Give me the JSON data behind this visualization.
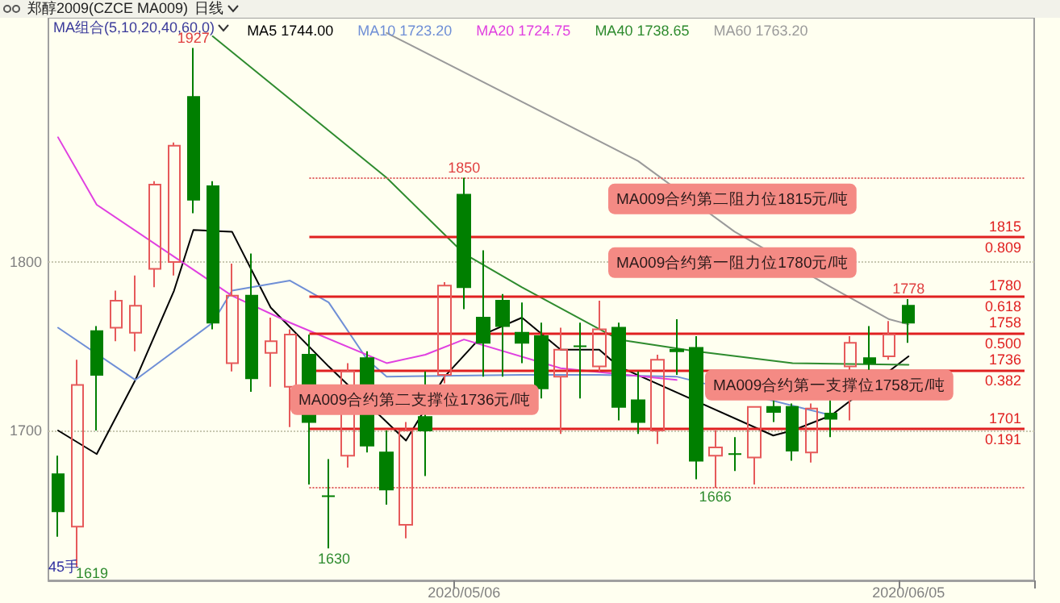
{
  "chart_data": {
    "type": "candlestick",
    "title": "郑醇2009(CZCE MA009)",
    "subtitle": "日线",
    "legend_title": "MA组合(5,10,20,40,60,0)",
    "legend": "top",
    "grid": "y",
    "categories": [
      null,
      null,
      null,
      null,
      null,
      null,
      null,
      null,
      null,
      null,
      null,
      null,
      null,
      null,
      null,
      null,
      null,
      null,
      null,
      null,
      null,
      "2020/05/06",
      null,
      null,
      null,
      null,
      null,
      null,
      null,
      null,
      null,
      null,
      null,
      null,
      null,
      null,
      null,
      null,
      null,
      null,
      null,
      null,
      null,
      null,
      "2020/06/05"
    ],
    "ohlc": [
      [
        1674,
        1685,
        1637,
        1652
      ],
      [
        1643,
        1742,
        1619,
        1727
      ],
      [
        1759,
        1762,
        1700,
        1733
      ],
      [
        1761,
        1783,
        1753,
        1777
      ],
      [
        1758,
        1792,
        1747,
        1774
      ],
      [
        1796,
        1848,
        1785,
        1846
      ],
      [
        1800,
        1871,
        1792,
        1869
      ],
      [
        1898,
        1927,
        1829,
        1837
      ],
      [
        1845,
        1848,
        1760,
        1764
      ],
      [
        1740,
        1799,
        1735,
        1780
      ],
      [
        1780,
        1805,
        1723,
        1731
      ],
      [
        1746,
        1767,
        1726,
        1753
      ],
      [
        1726,
        1760,
        1702,
        1757
      ],
      [
        1745,
        1757,
        1668,
        1705
      ],
      [
        1661,
        1683,
        1630,
        1661
      ],
      [
        1685,
        1740,
        1678,
        1735
      ],
      [
        1743,
        1747,
        1687,
        1691
      ],
      [
        1687,
        1700,
        1656,
        1665
      ],
      [
        1644,
        1705,
        1636,
        1700
      ],
      [
        1708,
        1735,
        1673,
        1700
      ],
      [
        1733,
        1788,
        1728,
        1786
      ],
      [
        1840,
        1850,
        1772,
        1785
      ],
      [
        1767,
        1807,
        1732,
        1752
      ],
      [
        1777,
        1781,
        1732,
        1762
      ],
      [
        1758,
        1776,
        1740,
        1752
      ],
      [
        1756,
        1764,
        1719,
        1725
      ],
      [
        1732,
        1761,
        1698,
        1748
      ],
      [
        1750,
        1764,
        1719,
        1750
      ],
      [
        1738,
        1777,
        1735,
        1760
      ],
      [
        1761,
        1764,
        1706,
        1714
      ],
      [
        1718,
        1735,
        1698,
        1705
      ],
      [
        1700,
        1745,
        1692,
        1742
      ],
      [
        1748,
        1766,
        1733,
        1747
      ],
      [
        1749,
        1756,
        1671,
        1682
      ],
      [
        1685,
        1700,
        1666,
        1690
      ],
      [
        1686,
        1696,
        1676,
        1686
      ],
      [
        1684,
        1714,
        1668,
        1714
      ],
      [
        1714,
        1718,
        1705,
        1711
      ],
      [
        1714,
        1716,
        1682,
        1688
      ],
      [
        1687,
        1716,
        1681,
        1713
      ],
      [
        1710,
        1718,
        1696,
        1707
      ],
      [
        1738,
        1756,
        1706,
        1752
      ],
      [
        1743,
        1762,
        1735,
        1740
      ],
      [
        1744,
        1765,
        1742,
        1757
      ],
      [
        1774,
        1778,
        1752,
        1764
      ]
    ],
    "series": [
      {
        "type": "line",
        "name": "MA5 1744.00",
        "color": "#000000",
        "values": [
          1700,
          null,
          1686,
          null,
          1730,
          null,
          1783,
          1819,
          null,
          1818,
          null,
          1773,
          null,
          null,
          1738,
          null,
          null,
          null,
          1694,
          null,
          1732,
          null,
          1757,
          null,
          1767,
          null,
          1748,
          null,
          1748,
          1738,
          null,
          null,
          null,
          null,
          null,
          null,
          null,
          1697,
          1700,
          null,
          1709,
          null,
          null,
          null,
          1744
        ]
      },
      {
        "type": "line",
        "name": "MA10 1723.20",
        "color": "#6f8fd6",
        "values": [
          1761,
          null,
          null,
          null,
          1730,
          null,
          null,
          null,
          1764,
          1783,
          null,
          null,
          1789,
          null,
          1776,
          null,
          1742,
          1732,
          null,
          null,
          null,
          null,
          null,
          null,
          1733,
          null,
          null,
          null,
          1733,
          null,
          null,
          null,
          1732,
          null,
          null,
          null,
          null,
          null,
          null,
          null,
          1709,
          null,
          null,
          null,
          null
        ]
      },
      {
        "type": "line",
        "name": "MA20 1724.75",
        "color": "#e040e0",
        "values": [
          1874,
          null,
          1834,
          null,
          null,
          null,
          null,
          null,
          null,
          1780,
          null,
          null,
          1764,
          null,
          null,
          null,
          null,
          1740,
          null,
          1745,
          null,
          1754,
          null,
          null,
          null,
          null,
          1737,
          null,
          null,
          null,
          null,
          null,
          1730,
          null,
          null,
          null,
          null,
          null,
          null,
          null,
          null,
          null,
          null,
          null,
          null
        ]
      },
      {
        "type": "line",
        "name": "MA40 1738.65",
        "color": "#2e8b2e",
        "values": [
          null,
          null,
          null,
          null,
          null,
          null,
          null,
          null,
          1934,
          null,
          null,
          null,
          null,
          null,
          null,
          null,
          null,
          1850,
          null,
          null,
          null,
          1805,
          null,
          null,
          1785,
          null,
          null,
          null,
          null,
          1754,
          null,
          null,
          null,
          1747,
          null,
          null,
          null,
          null,
          1740,
          null,
          null,
          null,
          null,
          null,
          1739
        ]
      },
      {
        "type": "line",
        "name": "MA60 1763.20",
        "color": "#9a9a9a",
        "values": [
          null,
          null,
          null,
          null,
          null,
          null,
          null,
          null,
          null,
          null,
          null,
          null,
          null,
          null,
          null,
          null,
          null,
          1936,
          null,
          null,
          null,
          null,
          null,
          null,
          null,
          null,
          null,
          null,
          null,
          null,
          1860,
          null,
          null,
          null,
          null,
          1818,
          null,
          null,
          null,
          null,
          1785,
          null,
          null,
          1766,
          1763
        ]
      }
    ],
    "ylim": [
      1611,
      1945
    ],
    "yticks": [
      1700,
      1800
    ],
    "ref_lines": [
      {
        "axis": "y",
        "value": 1850,
        "label": null,
        "color": "#e06060",
        "line_style": "dotted"
      },
      {
        "axis": "y",
        "value": 1815,
        "label": "1815\n0.809",
        "color": "#e02020",
        "line_style": "solid"
      },
      {
        "axis": "y",
        "value": 1780,
        "label": "1780\n0.618",
        "color": "#e02020",
        "line_style": "solid"
      },
      {
        "axis": "y",
        "value": 1758,
        "label": "1758\n0.500",
        "color": "#e02020",
        "line_style": "solid"
      },
      {
        "axis": "y",
        "value": 1736,
        "label": "1736\n0.382",
        "color": "#e02020",
        "line_style": "solid"
      },
      {
        "axis": "y",
        "value": 1701,
        "label": "1701\n0.191",
        "color": "#e02020",
        "line_style": "solid"
      },
      {
        "axis": "y",
        "value": 1666,
        "label": null,
        "color": "#e06060",
        "line_style": "dotted"
      }
    ],
    "annotations": [
      {
        "text": "1927",
        "y": 1927
      },
      {
        "text": "1850",
        "y": 1850
      },
      {
        "text": "1666",
        "y": 1666
      },
      {
        "text": "1778",
        "y": 1778
      },
      {
        "text": "MA009合约第二阻力位1815元/吨",
        "y": 1815
      },
      {
        "text": "MA009合约第一阻力位1780元/吨",
        "y": 1780
      },
      {
        "text": "MA009合约第一支撑位1758元/吨",
        "y": 1758
      },
      {
        "text": "MA009合约第二支撑位1736元/吨",
        "y": 1736
      },
      "1619",
      "1630",
      "45手"
    ]
  }
}
